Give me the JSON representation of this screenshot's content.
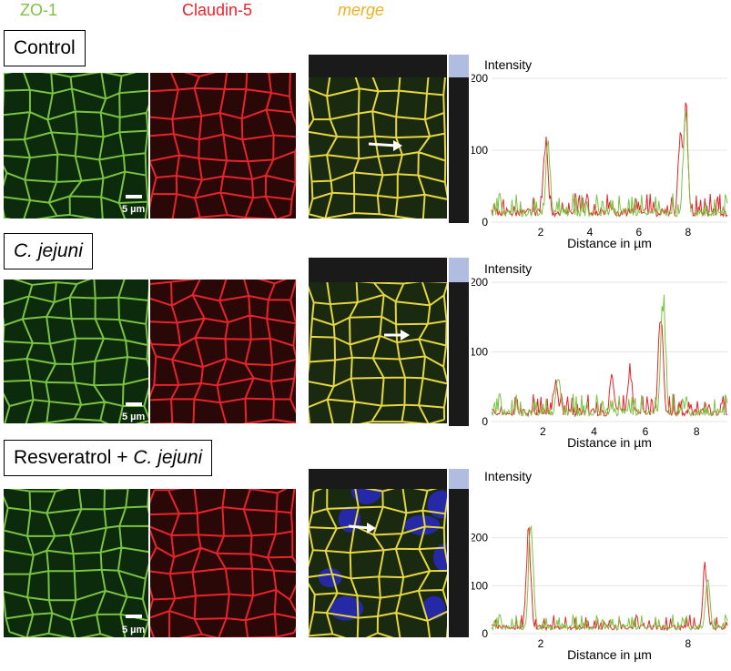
{
  "headers": {
    "zo1": "ZO-1",
    "claudin5": "Claudin-5",
    "merge": "merge"
  },
  "colors": {
    "green": "#7cc242",
    "red": "#e8242b",
    "merge": "#f0b024",
    "blue_nuclei": "#2a2ad8"
  },
  "rows": [
    {
      "label": "Control",
      "label_italic": "",
      "scalebar_text": "5 µm",
      "chart_data": {
        "type": "line",
        "ylabel": "Intensity",
        "xlabel": "Distance in µm",
        "xlim": [
          0,
          9.6
        ],
        "ylim": [
          0,
          200
        ],
        "xticks": [
          2,
          4,
          6,
          8
        ],
        "yticks": [
          0,
          100,
          200
        ],
        "series": [
          {
            "color": "red",
            "peaks": [
              [
                2.2,
                120
              ],
              [
                7.7,
                150
              ],
              [
                7.9,
                180
              ]
            ]
          },
          {
            "color": "green",
            "peaks": [
              [
                2.3,
                110
              ],
              [
                7.9,
                170
              ]
            ]
          }
        ]
      }
    },
    {
      "label": "",
      "label_italic": "C. jejuni",
      "scalebar_text": "5 µm",
      "chart_data": {
        "type": "line",
        "ylabel": "Intensity",
        "xlabel": "Distance in µm",
        "xlim": [
          0,
          9.2
        ],
        "ylim": [
          0,
          200
        ],
        "xticks": [
          2,
          4,
          6,
          8
        ],
        "yticks": [
          0,
          100,
          200
        ],
        "series": [
          {
            "color": "red",
            "peaks": [
              [
                2.5,
                60
              ],
              [
                4.7,
                70
              ],
              [
                5.4,
                80
              ],
              [
                6.6,
                175
              ]
            ]
          },
          {
            "color": "green",
            "peaks": [
              [
                2.6,
                75
              ],
              [
                6.7,
                190
              ]
            ]
          }
        ]
      }
    },
    {
      "label": "Resveratrol + ",
      "label_italic": "C. jejuni",
      "scalebar_text": "5 µm",
      "chart_data": {
        "type": "line",
        "ylabel": "Intensity",
        "xlabel": "Distance in µm",
        "xlim": [
          0,
          9.6
        ],
        "ylim": [
          0,
          300
        ],
        "xticks": [
          2,
          8
        ],
        "yticks": [
          0,
          100,
          200
        ],
        "series": [
          {
            "color": "red",
            "peaks": [
              [
                1.5,
                230
              ],
              [
                8.7,
                150
              ]
            ]
          },
          {
            "color": "green",
            "peaks": [
              [
                1.6,
                250
              ],
              [
                8.8,
                120
              ]
            ]
          }
        ]
      }
    }
  ]
}
